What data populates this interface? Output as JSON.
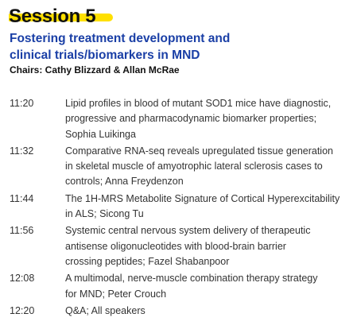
{
  "session": {
    "title": "Session 5",
    "subtitle_lines": [
      "Fostering treatment development and",
      "clinical  trials/biomarkers in MND"
    ],
    "chairs": "Chairs: Cathy Blizzard & Allan McRae",
    "highlight_color": "#ffe000",
    "subtitle_color": "#1a3fa6"
  },
  "program": [
    {
      "time": "11:20",
      "lines": [
        "Lipid profiles in blood of mutant SOD1 mice have diagnostic,",
        "progressive and pharmacodynamic biomarker properties;",
        "Sophia Luikinga"
      ]
    },
    {
      "time": "11:32",
      "lines": [
        "Comparative RNA-seq reveals upregulated tissue generation",
        "in skeletal muscle of amyotrophic lateral sclerosis cases to",
        "controls; Anna Freydenzon"
      ]
    },
    {
      "time": "11:44",
      "lines": [
        "The 1H-MRS Metabolite Signature of Cortical Hyperexcitability",
        "in ALS; Sicong Tu"
      ]
    },
    {
      "time": "11:56",
      "lines": [
        "Systemic central nervous system delivery of therapeutic",
        "antisense oligonucleotides with blood-brain barrier",
        "crossing peptides; Fazel Shabanpoor"
      ]
    },
    {
      "time": "12:08",
      "lines": [
        "A multimodal, nerve-muscle combination therapy strategy",
        "for MND; Peter Crouch"
      ]
    },
    {
      "time": "12:20",
      "lines": [
        "Q&A; All speakers"
      ]
    }
  ]
}
